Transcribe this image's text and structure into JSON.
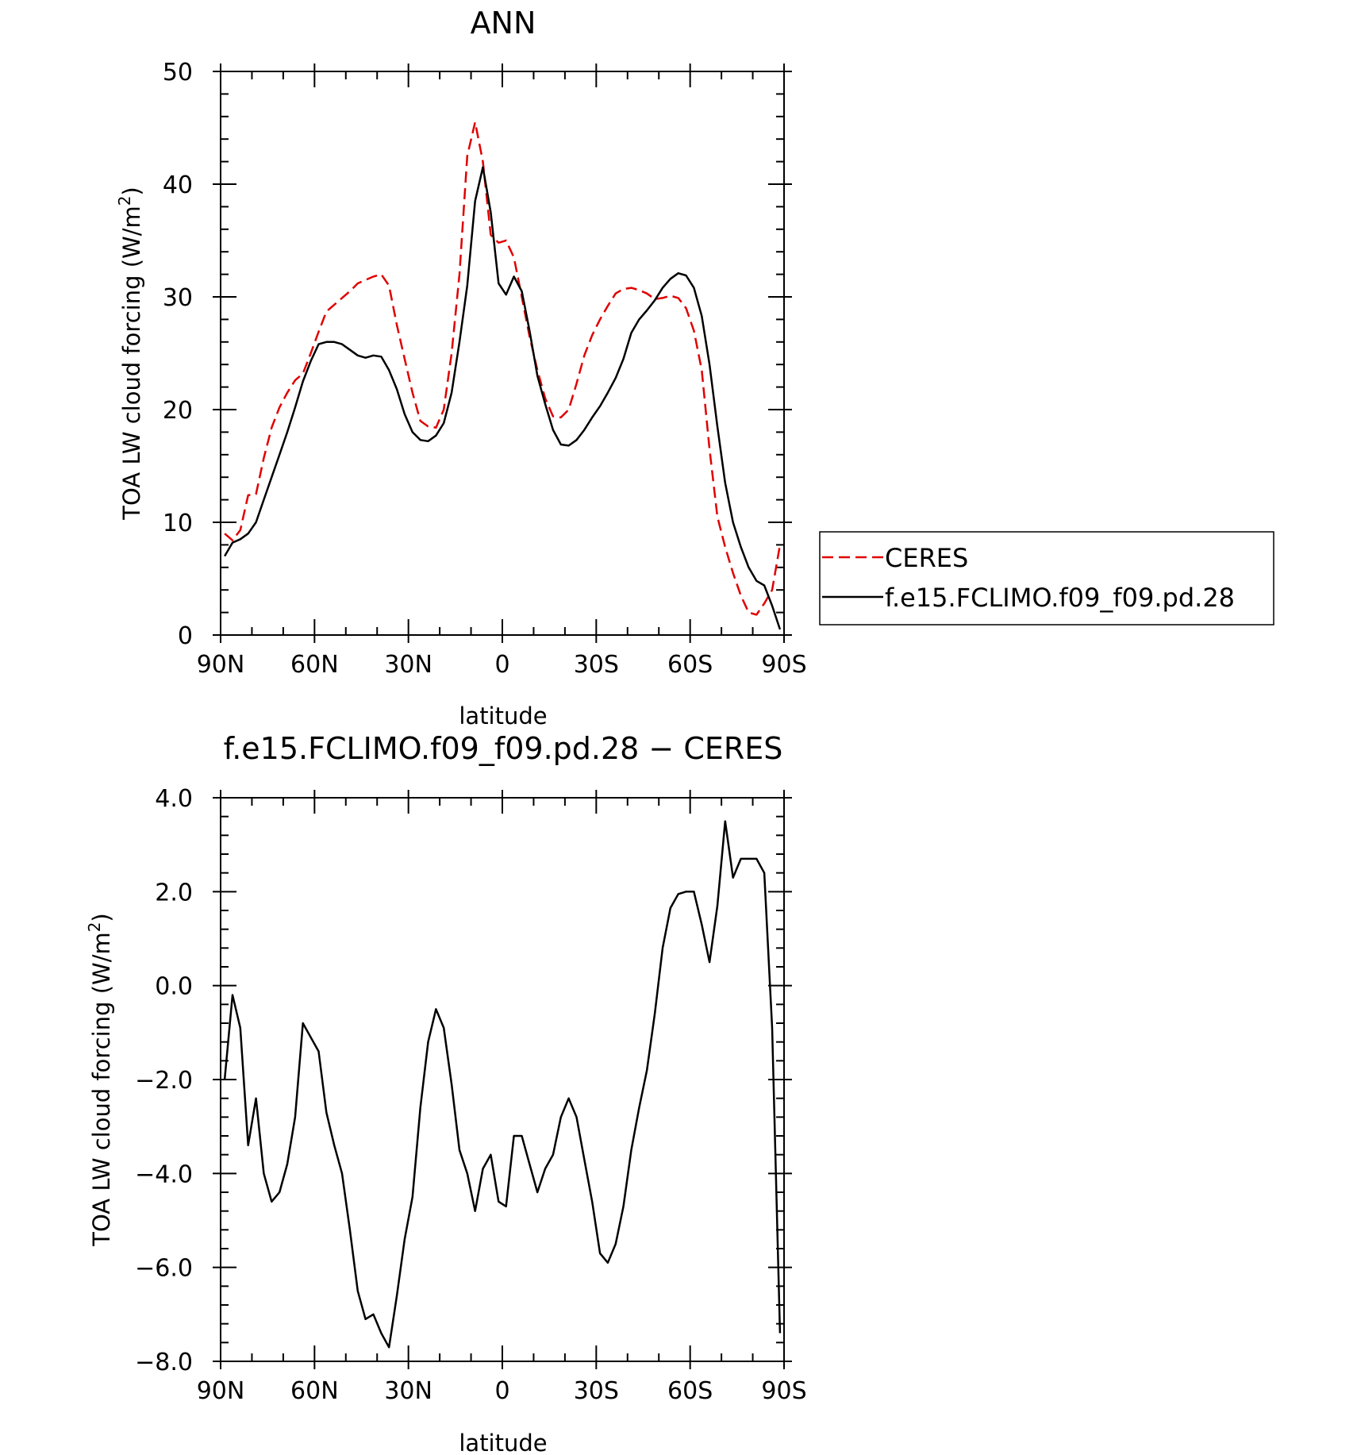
{
  "chart_data": [
    {
      "type": "line",
      "title": "ANN",
      "xlabel": "latitude",
      "ylabel": "TOA LW cloud forcing (W/m",
      "ylabel_sup": "2",
      "ylabel_end": ")",
      "xlim": [
        90,
        -90
      ],
      "ylim": [
        0,
        50
      ],
      "x_ticks": [
        90,
        60,
        30,
        0,
        -30,
        -60,
        -90
      ],
      "x_tick_labels": [
        "90N",
        "60N",
        "30N",
        "0",
        "30S",
        "60S",
        "90S"
      ],
      "y_ticks": [
        0,
        10,
        20,
        30,
        40,
        50
      ],
      "y_tick_labels": [
        "0",
        "10",
        "20",
        "30",
        "40",
        "50"
      ],
      "legend": {
        "position": "right",
        "entries": [
          "CERES",
          "f.e15.FCLIMO.f09_f09.pd.28"
        ]
      },
      "series": [
        {
          "name": "CERES",
          "color": "#e00000",
          "dash": "dashed",
          "x": [
            88.7,
            86.2,
            83.7,
            81.2,
            78.7,
            76.2,
            73.7,
            71.2,
            68.7,
            66.2,
            63.7,
            61.2,
            58.7,
            56.2,
            53.7,
            51.2,
            48.7,
            46.2,
            43.7,
            41.2,
            38.7,
            36.2,
            33.7,
            31.2,
            28.7,
            26.2,
            23.7,
            21.2,
            18.7,
            16.2,
            13.7,
            11.2,
            8.7,
            6.2,
            3.7,
            1.2,
            -1.2,
            -3.7,
            -6.2,
            -8.7,
            -11.2,
            -13.7,
            -16.2,
            -18.7,
            -21.2,
            -23.7,
            -26.2,
            -28.7,
            -31.2,
            -33.7,
            -36.2,
            -38.7,
            -41.2,
            -43.7,
            -46.2,
            -48.7,
            -51.2,
            -53.7,
            -56.2,
            -58.7,
            -61.2,
            -63.7,
            -66.2,
            -68.7,
            -71.2,
            -73.7,
            -76.2,
            -78.7,
            -81.2,
            -83.7,
            -86.2,
            -88.7
          ],
          "values": [
            9.0,
            8.4,
            9.3,
            12.4,
            12.5,
            15.7,
            18.4,
            20.2,
            21.5,
            22.6,
            23.2,
            25.0,
            26.9,
            28.7,
            29.3,
            29.9,
            30.5,
            31.2,
            31.5,
            31.8,
            32.0,
            31.0,
            27.5,
            24.5,
            21.5,
            19.0,
            18.5,
            18.4,
            20.0,
            25.0,
            32.0,
            42.5,
            45.5,
            42.0,
            35.5,
            34.8,
            35.0,
            33.5,
            30.0,
            26.5,
            23.5,
            21.0,
            19.4,
            19.3,
            20.0,
            22.3,
            24.8,
            26.6,
            28.0,
            29.2,
            30.3,
            30.7,
            30.8,
            30.6,
            30.3,
            29.8,
            29.9,
            30.1,
            29.9,
            29.0,
            27.0,
            23.5,
            16.5,
            10.5,
            7.8,
            5.5,
            3.5,
            2.0,
            1.8,
            2.8,
            4.0,
            8.0
          ]
        },
        {
          "name": "f.e15.FCLIMO.f09_f09.pd.28",
          "color": "#000000",
          "dash": "solid",
          "x": [
            88.7,
            86.2,
            83.7,
            81.2,
            78.7,
            76.2,
            73.7,
            71.2,
            68.7,
            66.2,
            63.7,
            61.2,
            58.7,
            56.2,
            53.7,
            51.2,
            48.7,
            46.2,
            43.7,
            41.2,
            38.7,
            36.2,
            33.7,
            31.2,
            28.7,
            26.2,
            23.7,
            21.2,
            18.7,
            16.2,
            13.7,
            11.2,
            8.7,
            6.2,
            3.7,
            1.2,
            -1.2,
            -3.7,
            -6.2,
            -8.7,
            -11.2,
            -13.7,
            -16.2,
            -18.7,
            -21.2,
            -23.7,
            -26.2,
            -28.7,
            -31.2,
            -33.7,
            -36.2,
            -38.7,
            -41.2,
            -43.7,
            -46.2,
            -48.7,
            -51.2,
            -53.7,
            -56.2,
            -58.7,
            -61.2,
            -63.7,
            -66.2,
            -68.7,
            -71.2,
            -73.7,
            -76.2,
            -78.7,
            -81.2,
            -83.7,
            -86.2,
            -88.7
          ],
          "values": [
            7.0,
            8.2,
            8.5,
            9.0,
            10.0,
            12.0,
            14.0,
            16.0,
            18.0,
            20.2,
            22.5,
            24.3,
            25.8,
            26.0,
            26.0,
            25.8,
            25.3,
            24.8,
            24.6,
            24.8,
            24.7,
            23.5,
            21.8,
            19.6,
            18.0,
            17.3,
            17.2,
            17.7,
            18.8,
            21.5,
            26.0,
            31.0,
            38.5,
            41.5,
            37.5,
            31.2,
            30.2,
            31.8,
            30.5,
            27.0,
            23.0,
            20.5,
            18.2,
            16.9,
            16.8,
            17.3,
            18.2,
            19.3,
            20.3,
            21.5,
            22.8,
            24.5,
            26.8,
            28.0,
            28.8,
            29.7,
            30.8,
            31.6,
            32.1,
            31.9,
            30.8,
            28.3,
            24.0,
            18.5,
            13.5,
            10.0,
            7.8,
            6.0,
            4.8,
            4.4,
            2.6,
            0.5
          ]
        }
      ]
    },
    {
      "type": "line",
      "title": "f.e15.FCLIMO.f09_f09.pd.28 − CERES",
      "xlabel": "latitude",
      "ylabel": "TOA LW cloud forcing (W/m",
      "ylabel_sup": "2",
      "ylabel_end": ")",
      "xlim": [
        90,
        -90
      ],
      "ylim": [
        -8,
        4
      ],
      "x_ticks": [
        90,
        60,
        30,
        0,
        -30,
        -60,
        -90
      ],
      "x_tick_labels": [
        "90N",
        "60N",
        "30N",
        "0",
        "30S",
        "60S",
        "90S"
      ],
      "y_ticks": [
        -8,
        -6,
        -4,
        -2,
        0,
        2,
        4
      ],
      "y_tick_labels": [
        "−8.0",
        "−6.0",
        "−4.0",
        "−2.0",
        "0.0",
        "2.0",
        "4.0"
      ],
      "series": [
        {
          "color": "#000000",
          "dash": "solid",
          "x": [
            88.7,
            86.2,
            83.7,
            81.2,
            78.7,
            76.2,
            73.7,
            71.2,
            68.7,
            66.2,
            63.7,
            61.2,
            58.7,
            56.2,
            53.7,
            51.2,
            48.7,
            46.2,
            43.7,
            41.2,
            38.7,
            36.2,
            33.7,
            31.2,
            28.7,
            26.2,
            23.7,
            21.2,
            18.7,
            16.2,
            13.7,
            11.2,
            8.7,
            6.2,
            3.7,
            1.2,
            -1.2,
            -3.7,
            -6.2,
            -8.7,
            -11.2,
            -13.7,
            -16.2,
            -18.7,
            -21.2,
            -23.7,
            -26.2,
            -28.7,
            -31.2,
            -33.7,
            -36.2,
            -38.7,
            -41.2,
            -43.7,
            -46.2,
            -48.7,
            -51.2,
            -53.7,
            -56.2,
            -58.7,
            -61.2,
            -63.7,
            -66.2,
            -68.7,
            -71.2,
            -73.7,
            -76.2,
            -78.7,
            -81.2,
            -83.7,
            -86.2,
            -88.7
          ],
          "values": [
            -2.0,
            -0.2,
            -0.9,
            -3.4,
            -2.4,
            -4.0,
            -4.6,
            -4.4,
            -3.8,
            -2.8,
            -0.8,
            -1.1,
            -1.4,
            -2.7,
            -3.4,
            -4.0,
            -5.2,
            -6.5,
            -7.1,
            -7.0,
            -7.4,
            -7.7,
            -6.6,
            -5.4,
            -4.5,
            -2.6,
            -1.2,
            -0.5,
            -0.9,
            -2.1,
            -3.5,
            -4.0,
            -4.8,
            -3.9,
            -3.6,
            -4.6,
            -4.7,
            -3.2,
            -3.2,
            -3.8,
            -4.4,
            -3.9,
            -3.6,
            -2.8,
            -2.4,
            -2.8,
            -3.7,
            -4.6,
            -5.7,
            -5.9,
            -5.5,
            -4.7,
            -3.5,
            -2.6,
            -1.8,
            -0.6,
            0.8,
            1.65,
            1.95,
            2.0,
            2.0,
            1.3,
            0.5,
            1.7,
            3.5,
            2.3,
            2.7,
            2.7,
            2.7,
            2.4,
            -0.9,
            -7.4
          ]
        }
      ]
    }
  ]
}
